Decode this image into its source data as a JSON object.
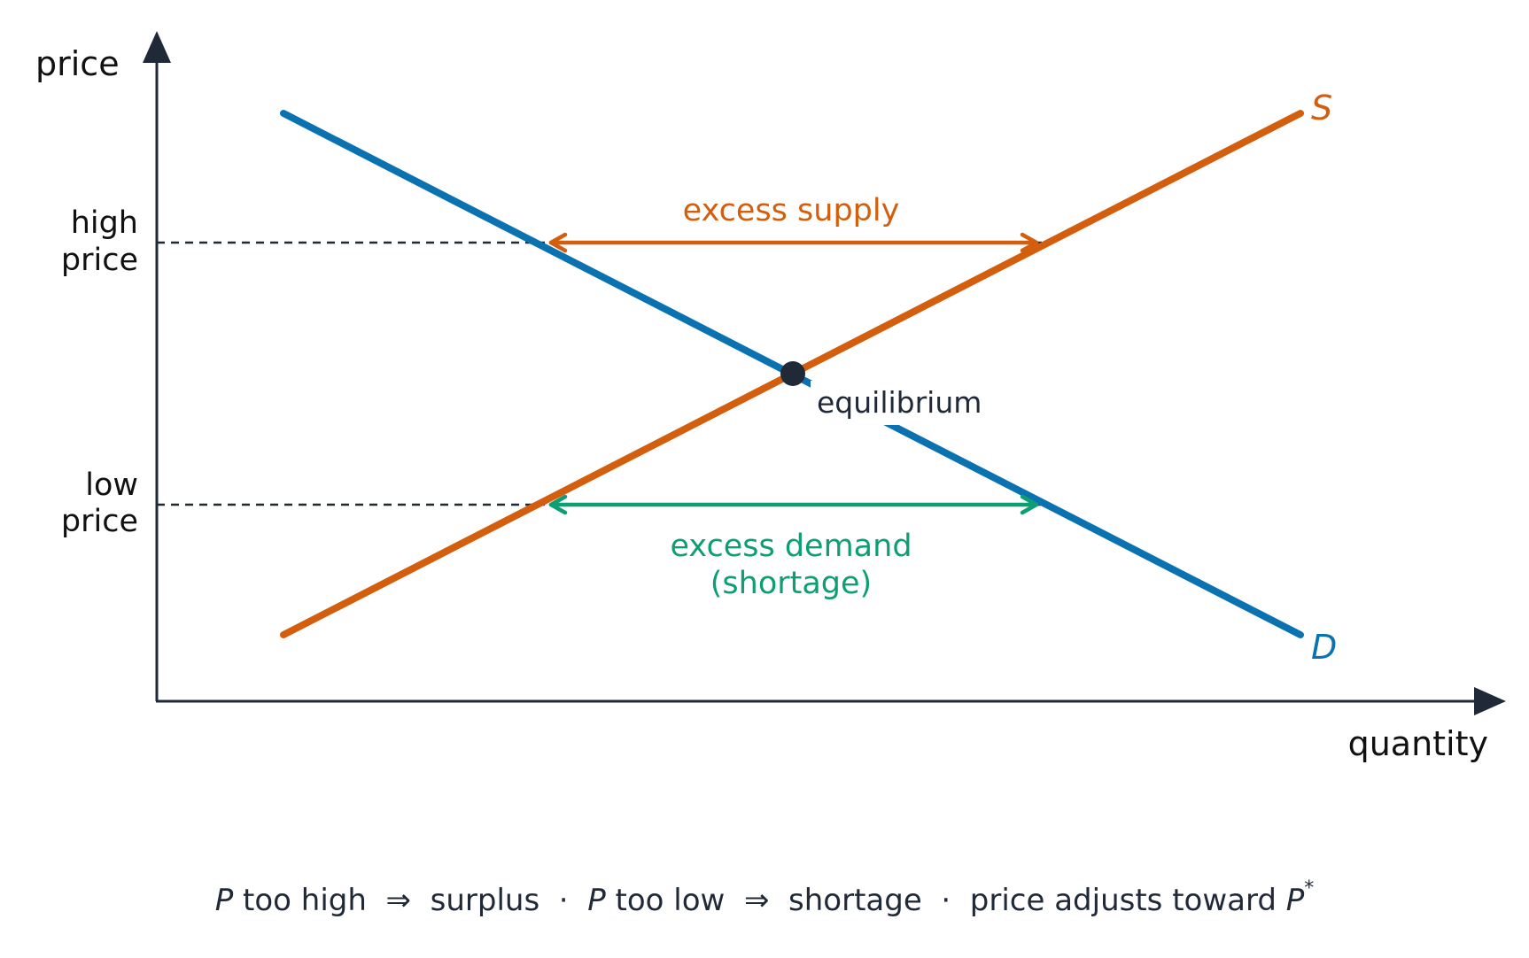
{
  "axes": {
    "y_label": "price",
    "x_label": "quantity"
  },
  "price_levels": {
    "high": {
      "line1": "high",
      "line2": "price"
    },
    "low": {
      "line1": "low",
      "line2": "price"
    }
  },
  "curves": {
    "supply": {
      "label": "S",
      "color": "#d35f0e"
    },
    "demand": {
      "label": "D",
      "color": "#0a72b0"
    }
  },
  "annotations": {
    "excess_supply": "excess supply",
    "excess_demand_line1": "excess demand",
    "excess_demand_line2": "(shortage)",
    "equilibrium": "equilibrium"
  },
  "colors": {
    "axis": "#1f2937",
    "excess_supply": "#d35f0e",
    "excess_demand": "#0e9e74",
    "equilibrium_point": "#1f2937"
  },
  "caption": {
    "p1": "P",
    "t1": " too high  ⇒  surplus  ·  ",
    "p2": "P",
    "t2": " too low  ⇒  shortage  ·  price adjusts toward ",
    "p3": "P",
    "star": "*"
  }
}
